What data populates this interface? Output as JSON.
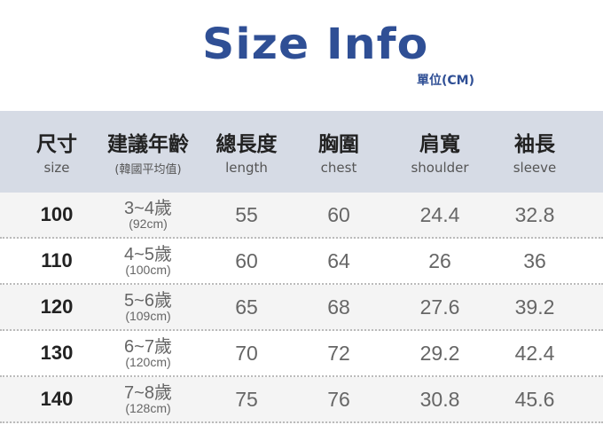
{
  "title": "Size Info",
  "unit": "單位(CM)",
  "columns": [
    {
      "zh": "尺寸",
      "en": "size"
    },
    {
      "zh": "建議年齡",
      "en": "(韓國平均值)"
    },
    {
      "zh": "總長度",
      "en": "length"
    },
    {
      "zh": "胸圍",
      "en": "chest"
    },
    {
      "zh": "肩寬",
      "en": "shoulder"
    },
    {
      "zh": "袖長",
      "en": "sleeve"
    }
  ],
  "rows": [
    {
      "size": "100",
      "age": "3~4歲",
      "height": "(92cm)",
      "length": "55",
      "chest": "60",
      "shoulder": "24.4",
      "sleeve": "32.8"
    },
    {
      "size": "110",
      "age": "4~5歲",
      "height": "(100cm)",
      "length": "60",
      "chest": "64",
      "shoulder": "26",
      "sleeve": "36"
    },
    {
      "size": "120",
      "age": "5~6歲",
      "height": "(109cm)",
      "length": "65",
      "chest": "68",
      "shoulder": "27.6",
      "sleeve": "39.2"
    },
    {
      "size": "130",
      "age": "6~7歲",
      "height": "(120cm)",
      "length": "70",
      "chest": "72",
      "shoulder": "29.2",
      "sleeve": "42.4"
    },
    {
      "size": "140",
      "age": "7~8歲",
      "height": "(128cm)",
      "length": "75",
      "chest": "76",
      "shoulder": "30.8",
      "sleeve": "45.6"
    }
  ]
}
